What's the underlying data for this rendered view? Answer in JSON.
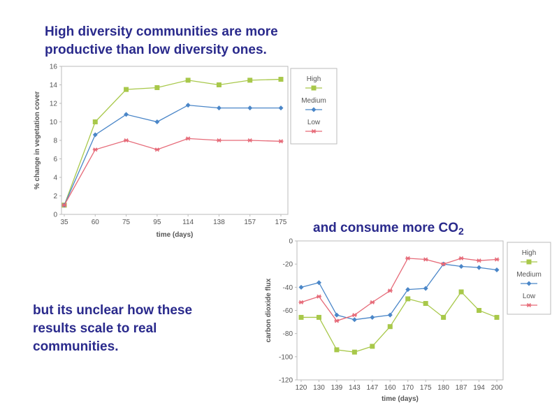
{
  "slide": {
    "headline_line1": "High diversity communities are more",
    "headline_line2": "productive than low diversity ones.",
    "co2_text": "and consume more CO",
    "co2_subscript": "2",
    "scale_line1": "but its unclear how these",
    "scale_line2": "results scale to real",
    "scale_line3": "communities."
  },
  "colors": {
    "High": "#a8c84a",
    "Medium": "#4a86c8",
    "Low": "#e66a78",
    "grid": "#d8d8d8",
    "axis": "#bbbbbb"
  },
  "chart_data": [
    {
      "type": "line",
      "title": "",
      "xlabel": "time (days)",
      "ylabel": "% change in vegetation cover",
      "categories": [
        "35",
        "60",
        "75",
        "95",
        "114",
        "138",
        "157",
        "175"
      ],
      "ylim": [
        0,
        16
      ],
      "yticks": [
        "0",
        "2",
        "4",
        "6",
        "8",
        "10",
        "12",
        "14",
        "16"
      ],
      "grid": "none",
      "legend": "right",
      "series": [
        {
          "name": "High",
          "marker": "square",
          "values": [
            1,
            10,
            13.5,
            13.7,
            14.5,
            14,
            14.5,
            14.6
          ]
        },
        {
          "name": "Medium",
          "marker": "diamond",
          "values": [
            1,
            8.6,
            10.8,
            10,
            11.8,
            11.5,
            11.5,
            11.5
          ]
        },
        {
          "name": "Low",
          "marker": "star",
          "values": [
            1,
            7,
            8,
            7,
            8.2,
            8,
            8,
            7.9
          ]
        }
      ]
    },
    {
      "type": "line",
      "title": "",
      "xlabel": "time (days)",
      "ylabel": "carbon dioxide flux",
      "categories": [
        "120",
        "130",
        "139",
        "143",
        "147",
        "160",
        "170",
        "175",
        "180",
        "187",
        "194",
        "200"
      ],
      "ylim": [
        -120,
        0
      ],
      "yticks": [
        "0",
        "-20",
        "-40",
        "-60",
        "-80",
        "-100",
        "-120"
      ],
      "grid": "none",
      "legend": "right",
      "series": [
        {
          "name": "High",
          "marker": "square",
          "values": [
            -66,
            -66,
            -94,
            -96,
            -91,
            -74,
            -50,
            -54,
            -66,
            -44,
            -60,
            -66
          ]
        },
        {
          "name": "Medium",
          "marker": "diamond",
          "values": [
            -40,
            -36,
            -64,
            -68,
            -66,
            -64,
            -42,
            -41,
            -20,
            -22,
            -23,
            -25
          ]
        },
        {
          "name": "Low",
          "marker": "star",
          "values": [
            -53,
            -48,
            -69,
            -64,
            -53,
            -43,
            -15,
            -16,
            -20,
            -15,
            -17,
            -16
          ]
        }
      ]
    }
  ]
}
